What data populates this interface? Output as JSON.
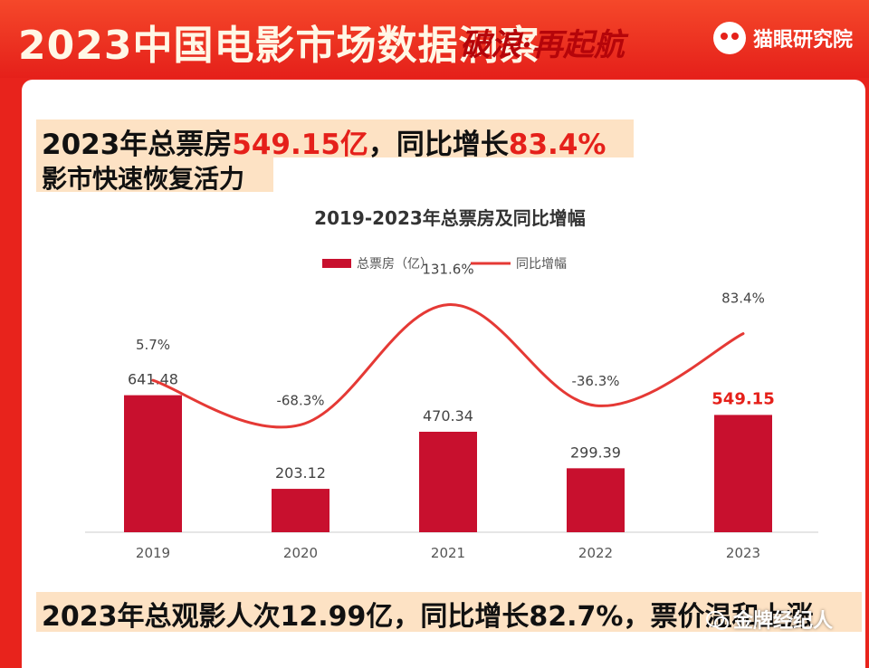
{
  "banner": {
    "title": "2023中国电影市场数据洞察",
    "slogan": "破浪·再起航",
    "logo_text": "猫眼研究院",
    "logo_icon": "cat-eye-logo-icon"
  },
  "headline": {
    "line1_prefix": "2023年总票房",
    "line1_value1": "549.15亿",
    "line1_mid": "，同比增长",
    "line1_value2": "83.4%",
    "line2": "影市快速恢复活力",
    "footer": "2023年总观影人次12.99亿，同比增长82.7%，票价温和上涨"
  },
  "watermark": {
    "icon": "wechat-icon",
    "text": "金牌经纪人"
  },
  "colors": {
    "bar": "#c8102e",
    "line": "#e53935",
    "highlight_label": "#e5201a"
  },
  "chart_data": {
    "type": "bar",
    "title": "2019-2023年总票房及同比增幅",
    "categories": [
      "2019",
      "2020",
      "2021",
      "2022",
      "2023"
    ],
    "series": [
      {
        "name": "总票房（亿）",
        "type": "bar",
        "values": [
          641.48,
          203.12,
          470.34,
          299.39,
          549.15
        ],
        "labels": [
          "641.48",
          "203.12",
          "470.34",
          "299.39",
          "549.15"
        ]
      },
      {
        "name": "同比增幅",
        "type": "line",
        "values": [
          5.7,
          -68.3,
          131.6,
          -36.3,
          83.4
        ],
        "labels": [
          "5.7%",
          "-68.3%",
          "131.6%",
          "-36.3%",
          "83.4%"
        ]
      }
    ],
    "legend": "top-center",
    "grid": false
  }
}
